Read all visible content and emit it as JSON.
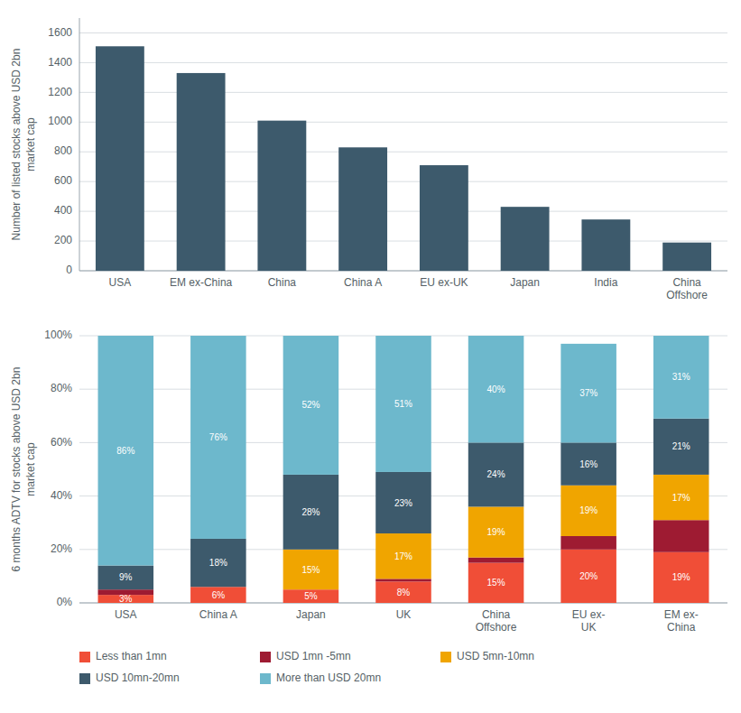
{
  "chart_data": [
    {
      "type": "bar",
      "categories": [
        "USA",
        "EM ex-China",
        "China",
        "China A",
        "EU ex-UK",
        "Japan",
        "India",
        "China\nOffshore"
      ],
      "values": [
        1510,
        1330,
        1010,
        830,
        710,
        430,
        345,
        190
      ],
      "color": "#3d5a6c",
      "ylabel": "Number of listed stocks above USD 2bn\nmarket cap",
      "ylim": [
        0,
        1700
      ],
      "yticks": [
        0,
        200,
        400,
        600,
        800,
        1000,
        1200,
        1400,
        1600
      ],
      "grid": true
    },
    {
      "type": "bar",
      "stacked": true,
      "categories": [
        "USA",
        "China A",
        "Japan",
        "UK",
        "China\nOffshore",
        "EU ex-\nUK",
        "EM ex-\nChina"
      ],
      "ylabel": "6 months ADTV for stocks above USD 2bn\nmarket cap",
      "ylim": [
        0,
        100
      ],
      "yticks": [
        {
          "value": 0,
          "label": "0%"
        },
        {
          "value": 20,
          "label": "20%"
        },
        {
          "value": 40,
          "label": "40%"
        },
        {
          "value": 60,
          "label": "60%"
        },
        {
          "value": 80,
          "label": "80%"
        },
        {
          "value": 100,
          "label": "100%"
        }
      ],
      "grid": true,
      "legend": "bottom",
      "series": [
        {
          "name": "Less than 1mn",
          "color": "#f04e37",
          "values": [
            3,
            6,
            5,
            8,
            15,
            20,
            19
          ],
          "data_labels": true,
          "value_labels": [
            "3%",
            "6%",
            "5%",
            "8%",
            "15%",
            "20%",
            "19%"
          ]
        },
        {
          "name": "USD 1mn -5mn",
          "color": "#9e1b32",
          "values": [
            2,
            0,
            0,
            1,
            2,
            5,
            12
          ],
          "data_labels": false
        },
        {
          "name": "USD 5mn-10mn",
          "color": "#f0a500",
          "values": [
            0,
            0,
            15,
            17,
            19,
            19,
            17
          ],
          "data_labels": true,
          "value_labels": [
            null,
            null,
            "15%",
            "17%",
            "19%",
            "19%",
            "17%"
          ]
        },
        {
          "name": "USD 10mn-20mn",
          "color": "#3d5a6c",
          "values": [
            9,
            18,
            28,
            23,
            24,
            16,
            21
          ],
          "data_labels": true,
          "value_labels": [
            "9%",
            "18%",
            "28%",
            "23%",
            "24%",
            "16%",
            "21%"
          ]
        },
        {
          "name": "More than USD 20mn",
          "color": "#6db8cc",
          "values": [
            86,
            76,
            52,
            51,
            40,
            37,
            31
          ],
          "data_labels": true,
          "value_labels": [
            "86%",
            "76%",
            "52%",
            "51%",
            "40%",
            "37%",
            "31%"
          ]
        }
      ]
    }
  ]
}
